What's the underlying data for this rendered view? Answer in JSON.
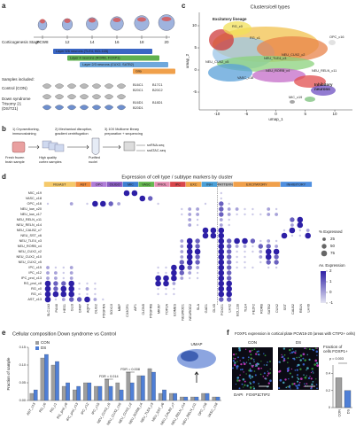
{
  "figure": {
    "a": {
      "label": "a",
      "pcw": [
        "PCW8",
        "12",
        "14",
        "16",
        "18",
        "20"
      ],
      "stage_label": "Corticogenesis Stage",
      "layers": [
        {
          "text": "Layer 5/6 neurons (TLE4, BCL11B)",
          "color": "#3a66c4"
        },
        {
          "text": "Layer 4 neurons (RORB, FOXP1)",
          "color": "#5fb04f"
        },
        {
          "text": "Layer 2/3 neurons (CUX2, SATB2)",
          "color": "#6fa8dc"
        },
        {
          "text": "Glia",
          "color": "#f0a04b"
        }
      ],
      "samples_title": "Samples included:",
      "control": "Control (CON)",
      "ds": [
        "Down syndrome",
        "Trisomy 21",
        "(DS/T21)"
      ],
      "control_ids": [
        "B16C1",
        "B17C1",
        "B20C1",
        "B20C2"
      ],
      "ds_ids": [
        "B16D1",
        "B18D1",
        "B20D1"
      ]
    },
    "b": {
      "label": "b",
      "steps": [
        [
          "1) Cryosectioning,",
          "immunostaining"
        ],
        [
          "2) Mechanical disruption,",
          "gradient centrifugation"
        ],
        [
          "3) 10X Multiome library",
          "preparation + sequencing"
        ]
      ],
      "items": [
        "Fresh frozen",
        "brain sample",
        "High quality",
        "cortex samples",
        "Purified",
        "nuclei"
      ],
      "outputs": [
        "snRNA-seq",
        "snATAC-seq"
      ]
    },
    "c": {
      "label": "c",
      "title": "Clusters/cell types",
      "xlabel": "umap_1",
      "ylabel": "umap_2",
      "xlim": [
        -13,
        13
      ],
      "ylim": [
        -9,
        13
      ],
      "xticks": [
        -10,
        -5,
        0,
        5,
        10
      ],
      "yticks": [
        -5,
        0,
        5,
        10
      ],
      "labels": [
        "Excitatory lineage",
        "Inhibitory",
        "neurons",
        "RG_c0",
        "RG_c1",
        "OPC_c16",
        "VASC_c18",
        "NEU_CUX2_c5",
        "NEU_TLE4_c3",
        "NEU_RORB_c4",
        "NEU_CUX2_c2",
        "NEU_RELN_c11",
        "MIC_c19"
      ]
    },
    "d": {
      "label": "d",
      "title": "Expression of cell type / subtype markers by cluster",
      "groups": [
        {
          "name": "RG/AST",
          "n": 4,
          "color": "#f5c96a"
        },
        {
          "name": "AST",
          "n": 2,
          "color": "#f08c3c"
        },
        {
          "name": "OPC",
          "n": 2,
          "color": "#b07cd8"
        },
        {
          "name": "OLIGO",
          "n": 2,
          "color": "#8a5cc2"
        },
        {
          "name": "MIC",
          "n": 2,
          "color": "#3d7fd1"
        },
        {
          "name": "VASC",
          "n": 2,
          "color": "#64b84f"
        },
        {
          "name": "PROL",
          "n": 2,
          "color": "#e58fb2"
        },
        {
          "name": "IPC",
          "n": 2,
          "color": "#d9464b"
        },
        {
          "name": "EXC",
          "n": 2,
          "color": "#f0a64b"
        },
        {
          "name": "INH",
          "n": 2,
          "color": "#4aa0d8"
        },
        {
          "name": "PATTERN",
          "n": 2,
          "color": "#bdbdbd"
        },
        {
          "name": "EXCITATORY",
          "n": 6,
          "color": "#f0a04b"
        },
        {
          "name": "INHIBITORY",
          "n": 4,
          "color": "#4f8fe0"
        }
      ],
      "genes": [
        "SLC1A3",
        "PAX6",
        "HES1",
        "GLI3",
        "GFAP",
        "AQP4",
        "OLIG2",
        "PDGFRA",
        "SOX10",
        "MBP",
        "CX3CR1",
        "AIF1",
        "CLDN5",
        "PDGFRB",
        "MKI67",
        "TOP2A",
        "EOMES",
        "NEUROD1",
        "NEUROD2",
        "SLA",
        "GAD1",
        "DLX5",
        "FOXG1",
        "LHX2",
        "BCL11B",
        "TLE4",
        "FEZF2",
        "RORB",
        "SATB2",
        "CUX2",
        "SST",
        "CALB2",
        "RELN",
        "LHX6"
      ],
      "clusters": [
        "MIC_c19",
        "VASC_c18",
        "OPC_c16",
        "NEU_low_c20",
        "NEU_low_c17",
        "NEU_RELN_c11",
        "NEU_RELN_c14",
        "NEU_CALB2_c7",
        "NEU_SST_c6",
        "NEU_TLE4_c3",
        "NEU_RORB_c4",
        "NEU_CUX2_c2",
        "NEU_CUX2_c10",
        "NEU_CUX2_c5",
        "IPC_c15",
        "IPC_c12",
        "IPC_prol_c13",
        "RG_prol_c8",
        "RG_c0",
        "RG_c1",
        "AST_c13"
      ],
      "pct_expressed": [
        [
          0,
          0,
          0,
          0,
          0,
          0,
          0,
          0,
          0,
          0,
          75,
          75,
          0,
          0,
          0,
          0,
          0,
          0,
          0,
          0,
          0,
          0,
          10,
          0,
          0,
          0,
          0,
          0,
          0,
          0,
          0,
          0,
          0,
          0
        ],
        [
          0,
          0,
          0,
          0,
          0,
          0,
          0,
          0,
          0,
          0,
          0,
          0,
          75,
          50,
          0,
          0,
          0,
          0,
          0,
          0,
          0,
          0,
          10,
          0,
          0,
          0,
          0,
          0,
          0,
          0,
          0,
          0,
          0,
          0
        ],
        [
          10,
          0,
          0,
          25,
          0,
          10,
          75,
          75,
          50,
          25,
          0,
          0,
          0,
          0,
          10,
          0,
          0,
          0,
          0,
          0,
          10,
          0,
          50,
          10,
          0,
          0,
          0,
          0,
          0,
          0,
          0,
          0,
          0,
          0
        ],
        [
          0,
          0,
          0,
          0,
          0,
          0,
          0,
          0,
          0,
          0,
          0,
          0,
          0,
          0,
          0,
          0,
          0,
          10,
          25,
          25,
          0,
          0,
          50,
          25,
          25,
          10,
          10,
          0,
          25,
          10,
          0,
          0,
          0,
          0
        ],
        [
          0,
          0,
          0,
          0,
          0,
          0,
          0,
          0,
          0,
          0,
          0,
          0,
          0,
          0,
          0,
          0,
          0,
          10,
          25,
          25,
          0,
          0,
          50,
          25,
          10,
          10,
          10,
          10,
          25,
          25,
          0,
          0,
          0,
          0
        ],
        [
          0,
          0,
          0,
          0,
          0,
          0,
          0,
          0,
          0,
          0,
          0,
          0,
          0,
          0,
          0,
          0,
          0,
          0,
          25,
          10,
          0,
          0,
          25,
          10,
          0,
          0,
          0,
          0,
          0,
          0,
          0,
          50,
          75,
          0
        ],
        [
          0,
          0,
          0,
          0,
          0,
          0,
          0,
          0,
          0,
          0,
          0,
          0,
          0,
          0,
          0,
          0,
          0,
          0,
          25,
          10,
          0,
          0,
          25,
          10,
          0,
          0,
          0,
          0,
          0,
          0,
          0,
          25,
          75,
          0
        ],
        [
          0,
          0,
          0,
          0,
          0,
          0,
          0,
          0,
          0,
          0,
          0,
          0,
          0,
          0,
          0,
          0,
          0,
          0,
          0,
          0,
          75,
          75,
          75,
          0,
          0,
          0,
          0,
          0,
          0,
          0,
          10,
          75,
          10,
          25
        ],
        [
          0,
          0,
          0,
          0,
          0,
          0,
          0,
          0,
          0,
          0,
          0,
          0,
          0,
          0,
          0,
          0,
          0,
          0,
          0,
          0,
          75,
          75,
          75,
          0,
          0,
          0,
          0,
          0,
          0,
          0,
          75,
          10,
          10,
          75
        ],
        [
          0,
          0,
          0,
          0,
          0,
          0,
          0,
          0,
          0,
          0,
          0,
          0,
          0,
          0,
          0,
          0,
          0,
          25,
          75,
          50,
          0,
          0,
          75,
          50,
          75,
          75,
          50,
          10,
          25,
          10,
          0,
          0,
          0,
          0
        ],
        [
          0,
          0,
          0,
          0,
          0,
          0,
          0,
          0,
          0,
          0,
          0,
          0,
          0,
          0,
          0,
          0,
          0,
          25,
          75,
          50,
          0,
          0,
          75,
          50,
          25,
          25,
          10,
          50,
          50,
          25,
          0,
          0,
          0,
          0
        ],
        [
          0,
          0,
          0,
          0,
          0,
          0,
          0,
          0,
          0,
          0,
          0,
          0,
          0,
          0,
          0,
          0,
          0,
          25,
          75,
          75,
          0,
          0,
          75,
          50,
          10,
          10,
          10,
          25,
          75,
          75,
          0,
          0,
          0,
          0
        ],
        [
          0,
          0,
          0,
          0,
          0,
          0,
          0,
          0,
          0,
          0,
          0,
          0,
          0,
          0,
          0,
          0,
          0,
          25,
          75,
          50,
          0,
          0,
          75,
          50,
          10,
          10,
          0,
          25,
          75,
          50,
          0,
          0,
          0,
          0
        ],
        [
          0,
          0,
          0,
          0,
          0,
          0,
          0,
          0,
          0,
          0,
          0,
          0,
          0,
          0,
          0,
          0,
          0,
          50,
          75,
          50,
          0,
          0,
          75,
          50,
          10,
          10,
          0,
          10,
          50,
          50,
          0,
          0,
          0,
          0
        ],
        [
          25,
          10,
          10,
          25,
          0,
          0,
          0,
          0,
          0,
          0,
          0,
          0,
          0,
          0,
          10,
          10,
          75,
          75,
          50,
          25,
          0,
          0,
          75,
          50,
          10,
          10,
          10,
          0,
          10,
          10,
          0,
          0,
          0,
          0
        ],
        [
          25,
          25,
          10,
          25,
          0,
          0,
          0,
          0,
          0,
          0,
          0,
          0,
          0,
          0,
          10,
          10,
          75,
          50,
          25,
          10,
          0,
          0,
          75,
          50,
          0,
          0,
          0,
          0,
          0,
          0,
          0,
          0,
          0,
          0
        ],
        [
          25,
          25,
          10,
          25,
          0,
          0,
          0,
          0,
          0,
          0,
          0,
          0,
          0,
          0,
          75,
          75,
          75,
          25,
          10,
          10,
          0,
          0,
          75,
          50,
          0,
          0,
          0,
          0,
          0,
          0,
          0,
          0,
          0,
          0
        ],
        [
          75,
          50,
          50,
          75,
          10,
          10,
          10,
          0,
          0,
          0,
          0,
          0,
          0,
          0,
          75,
          75,
          25,
          0,
          0,
          0,
          0,
          0,
          75,
          75,
          0,
          0,
          0,
          0,
          0,
          0,
          0,
          0,
          0,
          0
        ],
        [
          75,
          50,
          75,
          75,
          10,
          25,
          10,
          0,
          0,
          0,
          0,
          0,
          0,
          0,
          10,
          10,
          10,
          0,
          0,
          0,
          0,
          0,
          75,
          75,
          0,
          0,
          0,
          0,
          0,
          0,
          0,
          0,
          0,
          0
        ],
        [
          75,
          75,
          75,
          75,
          10,
          10,
          10,
          0,
          0,
          0,
          0,
          0,
          0,
          0,
          10,
          10,
          10,
          0,
          0,
          0,
          0,
          0,
          75,
          75,
          0,
          0,
          0,
          0,
          0,
          0,
          0,
          0,
          0,
          0
        ],
        [
          75,
          10,
          25,
          50,
          50,
          75,
          25,
          10,
          0,
          0,
          0,
          0,
          0,
          0,
          0,
          0,
          0,
          0,
          0,
          0,
          0,
          0,
          50,
          50,
          0,
          0,
          0,
          0,
          0,
          0,
          0,
          0,
          0,
          0
        ]
      ],
      "size_legend_title": "% Expressed",
      "size_legend": [
        25,
        50,
        75
      ],
      "color_legend_title": "Av. Expression",
      "color_legend_lim": [
        -1,
        2
      ],
      "color_legend_ticks": [
        -1,
        0,
        1,
        2
      ]
    },
    "e": {
      "label": "e",
      "title": "Cellular composition Down syndrome vs Control",
      "ylabel": "Fraction of sample",
      "ylim": [
        0,
        0.15
      ],
      "yticks": [
        {
          "value": 0,
          "label": "0.00"
        },
        {
          "value": 0.05,
          "label": "0.05"
        },
        {
          "value": 0.1,
          "label": "0.10"
        },
        {
          "value": 0.15,
          "label": "0.15"
        }
      ],
      "categories": [
        "AST_c13",
        "RG_c0",
        "RG_c1",
        "RG_prol_c8",
        "IPC_prol_c13",
        "IPC_c12",
        "IPC_c15",
        "NEU_CUX2_c5",
        "NEU_CUX2_c10",
        "NEU_CUX2_c2",
        "NEU_RORB_c4",
        "NEU_TLE4_c3",
        "NEU_SST_c6",
        "NEU_CALB2_c7",
        "NEU_RELN_c14",
        "NEU_RELN_c11",
        "OPC_c16",
        "VASC_c18"
      ],
      "series": [
        {
          "name": "CON",
          "color": "#9e9e9e",
          "values": [
            0.02,
            0.12,
            0.1,
            0.04,
            0.03,
            0.05,
            0.04,
            0.06,
            0.05,
            0.08,
            0.07,
            0.09,
            0.02,
            0.02,
            0.01,
            0.01,
            0.02,
            0.01
          ]
        },
        {
          "name": "DS",
          "color": "#4f7fd6",
          "values": [
            0.03,
            0.13,
            0.11,
            0.05,
            0.04,
            0.05,
            0.04,
            0.04,
            0.03,
            0.05,
            0.07,
            0.08,
            0.03,
            0.02,
            0.01,
            0.01,
            0.02,
            0.01
          ]
        }
      ],
      "annotations": [
        "FDR = 0.014",
        "FDR = 0.008"
      ],
      "inset_label": "UMAP"
    },
    "f": {
      "label": "f",
      "title": "FOXP1 expression in cortical plate PCW16-20 (areas with CTIP2+ cells)",
      "panels": [
        "CON",
        "DS"
      ],
      "stains": [
        {
          "name": "DAPI",
          "color": "#3d6fe0"
        },
        {
          "name": "FOXP1",
          "color": "#3aa83a"
        },
        {
          "name": "CTIP2",
          "color": "#d63cc8"
        }
      ],
      "fraction_label": [
        "Fraction of",
        "cells FOXP1+"
      ],
      "p_label": "p = 0.003",
      "categories": [
        "CON",
        "DS"
      ],
      "values": [
        0.35,
        0.2
      ],
      "colors": [
        "#9e9e9e",
        "#4f7fd6"
      ],
      "ylim": [
        0,
        0.5
      ],
      "yticks": [
        0,
        0.2,
        0.4
      ]
    }
  }
}
